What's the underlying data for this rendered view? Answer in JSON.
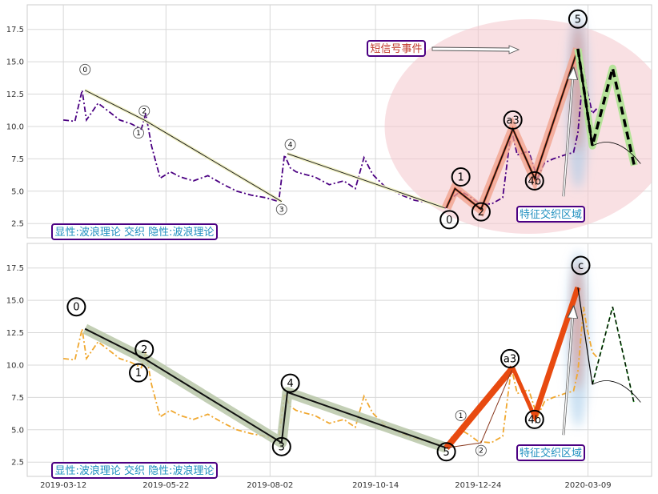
{
  "chart_data": [
    {
      "type": "line",
      "panel": "top",
      "ylim": [
        1.4,
        19.4
      ],
      "yticks": [
        "2.5",
        "5.0",
        "7.5",
        "10.0",
        "12.5",
        "15.0",
        "17.5"
      ],
      "ytick_values": [
        2.5,
        5.0,
        7.5,
        10.0,
        12.5,
        15.0,
        17.5
      ],
      "grid": true,
      "series": [
        {
          "style": "dash-dot",
          "color": "#4b0082",
          "x": [
            "2019-03-12",
            "2019-03-20",
            "2019-03-25",
            "2019-03-28",
            "2019-04-05",
            "2019-04-12",
            "2019-04-20",
            "2019-04-28",
            "2019-05-05",
            "2019-05-08",
            "2019-05-12",
            "2019-05-18",
            "2019-05-25",
            "2019-06-01",
            "2019-06-10",
            "2019-06-20",
            "2019-07-01",
            "2019-07-10",
            "2019-07-20",
            "2019-07-30",
            "2019-08-08",
            "2019-08-12",
            "2019-08-16",
            "2019-08-20",
            "2019-08-26",
            "2019-09-02",
            "2019-09-12",
            "2019-09-22",
            "2019-09-30",
            "2019-10-06",
            "2019-10-12",
            "2019-10-20",
            "2019-11-01",
            "2019-11-10",
            "2019-11-20",
            "2019-11-28",
            "2019-12-02",
            "2019-12-06",
            "2019-12-12",
            "2019-12-18",
            "2019-12-24",
            "2020-01-02",
            "2020-01-10",
            "2020-01-16",
            "2020-01-20",
            "2020-01-28",
            "2020-02-03",
            "2020-02-08",
            "2020-02-14",
            "2020-02-22",
            "2020-02-28",
            "2020-03-02",
            "2020-03-06",
            "2020-03-08",
            "2020-03-12",
            "2020-03-16"
          ],
          "values": [
            10.5,
            10.4,
            12.8,
            10.5,
            11.8,
            11.2,
            10.5,
            10.2,
            9.8,
            11.0,
            8.5,
            6.0,
            6.5,
            6.1,
            5.8,
            6.2,
            5.5,
            5.0,
            4.7,
            4.5,
            4.2,
            7.8,
            6.8,
            6.5,
            6.3,
            6.1,
            5.5,
            5.8,
            5.2,
            7.6,
            6.3,
            5.4,
            4.7,
            4.3,
            4.1,
            3.8,
            3.7,
            4.5,
            5.0,
            4.6,
            4.1,
            4.0,
            4.5,
            9.8,
            7.8,
            8.1,
            6.0,
            7.2,
            7.5,
            7.8,
            8.0,
            9.5,
            14.5,
            13.0,
            11.0,
            11.5
          ]
        }
      ],
      "wave_lines": [
        {
          "x": [
            "2019-03-27",
            "2019-05-07"
          ],
          "y": [
            12.8,
            10.5
          ]
        },
        {
          "x": [
            "2019-05-07",
            "2019-08-10"
          ],
          "y": [
            10.5,
            4.2
          ]
        },
        {
          "x": [
            "2019-08-14",
            "2019-12-01"
          ],
          "y": [
            7.9,
            3.7
          ]
        }
      ],
      "impulse_orange": {
        "x": [
          "2019-12-02",
          "2019-12-08",
          "2019-12-26",
          "2020-01-17",
          "2020-02-01",
          "2020-03-02"
        ],
        "y": [
          3.7,
          5.2,
          3.6,
          9.8,
          6.0,
          16.0
        ]
      },
      "projection": {
        "x": [
          "2020-03-02",
          "2020-03-12",
          "2020-03-26",
          "2020-04-10"
        ],
        "y": [
          16.0,
          8.5,
          14.5,
          7.0
        ]
      },
      "labels": [
        {
          "text": "0",
          "x": "2019-03-27",
          "y": 14.4,
          "size": "small"
        },
        {
          "text": "2",
          "x": "2019-05-07",
          "y": 11.2,
          "size": "small"
        },
        {
          "text": "1",
          "x": "2019-05-03",
          "y": 9.5,
          "size": "small"
        },
        {
          "text": "4",
          "x": "2019-08-16",
          "y": 8.6,
          "size": "small"
        },
        {
          "text": "3",
          "x": "2019-08-10",
          "y": 3.6,
          "size": "small"
        },
        {
          "text": "1",
          "x": "2019-12-12",
          "y": 6.1,
          "size": "large"
        },
        {
          "text": "2",
          "x": "2019-12-26",
          "y": 3.4,
          "size": "large"
        },
        {
          "text": "0",
          "x": "2019-12-04",
          "y": 2.8,
          "size": "large"
        },
        {
          "text": "a3",
          "x": "2020-01-17",
          "y": 10.5,
          "size": "large"
        },
        {
          "text": "4b",
          "x": "2020-02-01",
          "y": 5.8,
          "size": "large"
        },
        {
          "text": "5",
          "x": "2020-03-02",
          "y": 18.3,
          "size": "large"
        }
      ],
      "annotations": {
        "pattern_label": "显性:波浪理论 交织 隐性:波浪理论",
        "signal_label": "短信号事件",
        "zone_label": "特征交织区域"
      }
    },
    {
      "type": "line",
      "panel": "bottom",
      "ylim": [
        1.4,
        19.4
      ],
      "yticks": [
        "2.5",
        "5.0",
        "7.5",
        "10.0",
        "12.5",
        "15.0",
        "17.5"
      ],
      "ytick_values": [
        2.5,
        5.0,
        7.5,
        10.0,
        12.5,
        15.0,
        17.5
      ],
      "grid": true,
      "xticks": [
        "2019-03-12",
        "2019-05-22",
        "2019-08-02",
        "2019-10-14",
        "2019-12-24",
        "2020-03-09"
      ],
      "series": [
        {
          "style": "dash-dot",
          "color": "#f0a830",
          "x": [
            "2019-03-12",
            "2019-03-20",
            "2019-03-25",
            "2019-03-28",
            "2019-04-05",
            "2019-04-12",
            "2019-04-20",
            "2019-04-28",
            "2019-05-05",
            "2019-05-08",
            "2019-05-12",
            "2019-05-18",
            "2019-05-25",
            "2019-06-01",
            "2019-06-10",
            "2019-06-20",
            "2019-07-01",
            "2019-07-10",
            "2019-07-20",
            "2019-07-30",
            "2019-08-08",
            "2019-08-12",
            "2019-08-16",
            "2019-08-20",
            "2019-08-26",
            "2019-09-02",
            "2019-09-12",
            "2019-09-22",
            "2019-09-30",
            "2019-10-06",
            "2019-10-12",
            "2019-10-20",
            "2019-11-01",
            "2019-11-10",
            "2019-11-20",
            "2019-11-28",
            "2019-12-02",
            "2019-12-06",
            "2019-12-12",
            "2019-12-18",
            "2019-12-24",
            "2020-01-02",
            "2020-01-10",
            "2020-01-16",
            "2020-01-20",
            "2020-01-28",
            "2020-02-03",
            "2020-02-08",
            "2020-02-14",
            "2020-02-22",
            "2020-02-28",
            "2020-03-02",
            "2020-03-06",
            "2020-03-08",
            "2020-03-12",
            "2020-03-16"
          ],
          "values": [
            10.5,
            10.4,
            12.8,
            10.5,
            11.8,
            11.2,
            10.5,
            10.2,
            9.8,
            11.0,
            8.5,
            6.0,
            6.5,
            6.1,
            5.8,
            6.2,
            5.5,
            5.0,
            4.7,
            4.5,
            4.2,
            7.8,
            6.8,
            6.5,
            6.3,
            6.1,
            5.5,
            5.8,
            5.2,
            7.6,
            6.3,
            5.4,
            4.7,
            4.3,
            4.1,
            3.8,
            3.7,
            4.5,
            5.0,
            4.6,
            4.1,
            4.0,
            4.5,
            9.8,
            7.8,
            8.1,
            6.0,
            7.2,
            7.5,
            7.8,
            8.0,
            9.5,
            14.5,
            13.0,
            11.0,
            10.5
          ]
        }
      ],
      "wave_lines": [
        {
          "x": [
            "2019-03-27",
            "2019-05-07",
            "2019-08-10",
            "2019-08-14",
            "2019-12-02"
          ],
          "y": [
            12.8,
            10.5,
            4.0,
            7.9,
            3.6
          ]
        }
      ],
      "impulse_orange": {
        "x": [
          "2019-12-02",
          "2020-01-17"
        ],
        "y": [
          3.6,
          9.8
        ]
      },
      "impulse_black": {
        "x": [
          "2020-01-17",
          "2020-02-01",
          "2020-03-02"
        ],
        "y": [
          9.8,
          6.0,
          16.0
        ]
      },
      "projection": {
        "x": [
          "2020-03-02",
          "2020-03-12",
          "2020-03-26",
          "2020-04-10"
        ],
        "y": [
          16.0,
          8.5,
          14.5,
          7.0
        ]
      },
      "labels": [
        {
          "text": "0",
          "x": "2019-03-21",
          "y": 14.5,
          "size": "large"
        },
        {
          "text": "2",
          "x": "2019-05-07",
          "y": 11.2,
          "size": "large"
        },
        {
          "text": "1",
          "x": "2019-05-03",
          "y": 9.4,
          "size": "large"
        },
        {
          "text": "4",
          "x": "2019-08-16",
          "y": 8.6,
          "size": "large"
        },
        {
          "text": "3",
          "x": "2019-08-10",
          "y": 3.7,
          "size": "large"
        },
        {
          "text": "5",
          "x": "2019-12-02",
          "y": 3.3,
          "size": "large"
        },
        {
          "text": "1",
          "x": "2019-12-12",
          "y": 6.1,
          "size": "small"
        },
        {
          "text": "2",
          "x": "2019-12-26",
          "y": 3.4,
          "size": "small"
        },
        {
          "text": "a3",
          "x": "2020-01-15",
          "y": 10.5,
          "size": "large"
        },
        {
          "text": "4b",
          "x": "2020-02-01",
          "y": 5.8,
          "size": "large"
        },
        {
          "text": "c",
          "x": "2020-03-04",
          "y": 17.7,
          "size": "large"
        }
      ],
      "annotations": {
        "pattern_label": "显性:波浪理论 交织 隐性:波浪理论",
        "zone_label": "特征交织区域"
      }
    }
  ]
}
